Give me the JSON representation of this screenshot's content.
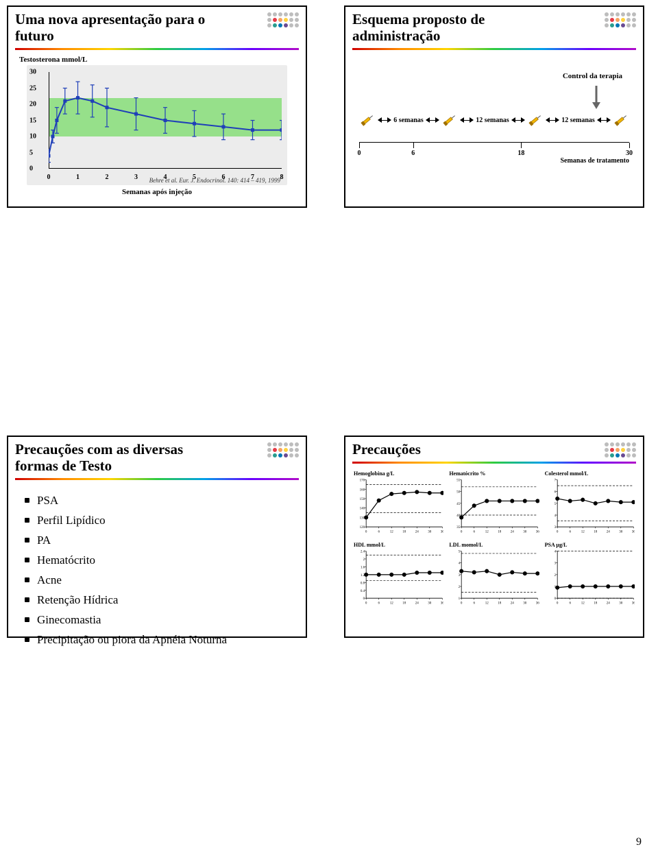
{
  "page_number": "9",
  "dot_colors": [
    "#bdbdbd",
    "#bdbdbd",
    "#bdbdbd",
    "#bdbdbd",
    "#bdbdbd",
    "#bdbdbd",
    "#bdbdbd",
    "#e63946",
    "#f4a261",
    "#ffd23f",
    "#bdbdbd",
    "#bdbdbd",
    "#bdbdbd",
    "#2a9d8f",
    "#0077b6",
    "#6a4c93",
    "#bdbdbd",
    "#bdbdbd"
  ],
  "slide_tl": {
    "title": "Uma nova apresentação para o futuro",
    "y_axis_label": "Testosterona mmol/L",
    "x_caption": "Semanas após injeção",
    "citation": "Behre et al. Eur. J. Endocrinol. 140: 414 – 419, 1999",
    "chart": {
      "type": "line",
      "xlim": [
        0,
        8
      ],
      "ylim": [
        0,
        30
      ],
      "xticks": [
        0,
        1,
        2,
        3,
        4,
        5,
        6,
        7,
        8
      ],
      "yticks": [
        0,
        5,
        10,
        15,
        20,
        25,
        30
      ],
      "band_y": [
        10,
        22
      ],
      "background": "#ececec",
      "band_color": "#96e08a",
      "line_color": "#1f3fb8",
      "marker_color": "#1f3fb8",
      "marker_size": 5,
      "line_width": 2,
      "errorbar_color": "#1f3fb8",
      "points": [
        {
          "x": 0,
          "y": 4,
          "err": 2
        },
        {
          "x": 0.14,
          "y": 10,
          "err": 2
        },
        {
          "x": 0.28,
          "y": 15,
          "err": 4
        },
        {
          "x": 0.56,
          "y": 21,
          "err": 4
        },
        {
          "x": 1,
          "y": 22,
          "err": 5
        },
        {
          "x": 1.5,
          "y": 21,
          "err": 5
        },
        {
          "x": 2,
          "y": 19,
          "err": 6
        },
        {
          "x": 3,
          "y": 17,
          "err": 5
        },
        {
          "x": 4,
          "y": 15,
          "err": 4
        },
        {
          "x": 5,
          "y": 14,
          "err": 4
        },
        {
          "x": 6,
          "y": 13,
          "err": 4
        },
        {
          "x": 7,
          "y": 12,
          "err": 3
        },
        {
          "x": 8,
          "y": 12,
          "err": 3
        }
      ]
    }
  },
  "slide_tr": {
    "title": "Esquema proposto de administração",
    "control_label": "Control da terapia",
    "segments": [
      {
        "label": "6 semanas"
      },
      {
        "label": "12 semanas"
      },
      {
        "label": "12 semanas"
      }
    ],
    "axis": {
      "ticks": [
        0,
        6,
        18,
        30
      ],
      "labels": [
        "0",
        "6",
        "18",
        "30"
      ],
      "caption": "Semanas de tratamento"
    },
    "syringe_color": "#f2b705",
    "arrow_color": "#666666"
  },
  "slide_bl": {
    "title": "Precauções com as diversas formas de Testo",
    "items": [
      "PSA",
      "Perfil Lipídico",
      "PA",
      "Hematócrito",
      "Acne",
      "Retenção Hídrica",
      "Ginecomastia",
      "Precipitação ou piora da Apnéia Noturna"
    ]
  },
  "slide_br": {
    "title": "Precauções",
    "panel_style": {
      "line_color": "#000000",
      "marker_color": "#000000",
      "marker_size": 3,
      "line_width": 1.2,
      "border_color": "#000000",
      "ref_dash": "3,2",
      "ref_color": "#000000",
      "background": "#ffffff",
      "label_fontsize": 8
    },
    "panels": [
      {
        "title": "Hemoglobina g/L",
        "xlim": [
          0,
          36
        ],
        "ylim": [
          120,
          170
        ],
        "xticks": [
          0,
          6,
          12,
          18,
          24,
          30,
          36
        ],
        "yticks": [
          120,
          130,
          140,
          150,
          160,
          170
        ],
        "ref": [
          135,
          165
        ],
        "points": [
          [
            0,
            130
          ],
          [
            6,
            148
          ],
          [
            12,
            155
          ],
          [
            18,
            156
          ],
          [
            24,
            157
          ],
          [
            30,
            156
          ],
          [
            36,
            156
          ]
        ]
      },
      {
        "title": "Hematócrito %",
        "xlim": [
          0,
          36
        ],
        "ylim": [
          35,
          55
        ],
        "xticks": [
          0,
          6,
          12,
          18,
          24,
          30,
          36
        ],
        "yticks": [
          35,
          40,
          45,
          50,
          55
        ],
        "ref": [
          40,
          52
        ],
        "points": [
          [
            0,
            39
          ],
          [
            6,
            44
          ],
          [
            12,
            46
          ],
          [
            18,
            46
          ],
          [
            24,
            46
          ],
          [
            30,
            46
          ],
          [
            36,
            46
          ]
        ]
      },
      {
        "title": "Colesterol mmol/L",
        "xlim": [
          0,
          36
        ],
        "ylim": [
          3,
          7
        ],
        "xticks": [
          0,
          6,
          12,
          18,
          24,
          30,
          36
        ],
        "yticks": [
          3,
          4,
          5,
          6,
          7
        ],
        "ref": [
          3.5,
          6.5
        ],
        "points": [
          [
            0,
            5.4
          ],
          [
            6,
            5.2
          ],
          [
            12,
            5.3
          ],
          [
            18,
            5.0
          ],
          [
            24,
            5.2
          ],
          [
            30,
            5.1
          ],
          [
            36,
            5.1
          ]
        ]
      },
      {
        "title": "HDL mmol/L",
        "xlim": [
          0,
          36
        ],
        "ylim": [
          0,
          2.4
        ],
        "xticks": [
          0,
          6,
          12,
          18,
          24,
          30,
          36
        ],
        "yticks": [
          0,
          0.4,
          0.8,
          1.2,
          1.6,
          2.0,
          2.4
        ],
        "ref": [
          0.9,
          2.2
        ],
        "points": [
          [
            0,
            1.2
          ],
          [
            6,
            1.2
          ],
          [
            12,
            1.2
          ],
          [
            18,
            1.2
          ],
          [
            24,
            1.3
          ],
          [
            30,
            1.3
          ],
          [
            36,
            1.3
          ]
        ]
      },
      {
        "title": "LDL momol/L",
        "xlim": [
          0,
          36
        ],
        "ylim": [
          1,
          5
        ],
        "xticks": [
          0,
          6,
          12,
          18,
          24,
          30,
          36
        ],
        "yticks": [
          1,
          2,
          3,
          4,
          5
        ],
        "ref": [
          1.5,
          4.8
        ],
        "points": [
          [
            0,
            3.3
          ],
          [
            6,
            3.2
          ],
          [
            12,
            3.3
          ],
          [
            18,
            3.0
          ],
          [
            24,
            3.2
          ],
          [
            30,
            3.1
          ],
          [
            36,
            3.1
          ]
        ]
      },
      {
        "title": "PSA µg/L",
        "xlim": [
          0,
          36
        ],
        "ylim": [
          0,
          4
        ],
        "xticks": [
          0,
          6,
          12,
          18,
          24,
          30,
          36
        ],
        "yticks": [
          0,
          1,
          2,
          3,
          4
        ],
        "ref": [
          0,
          4
        ],
        "points": [
          [
            0,
            0.9
          ],
          [
            6,
            1.0
          ],
          [
            12,
            1.0
          ],
          [
            18,
            1.0
          ],
          [
            24,
            1.0
          ],
          [
            30,
            1.0
          ],
          [
            36,
            1.0
          ]
        ]
      }
    ]
  }
}
